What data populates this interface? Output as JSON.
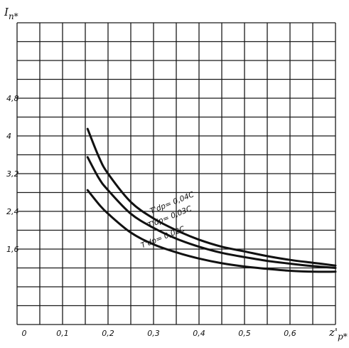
{
  "chart_data": {
    "type": "line",
    "title": "",
    "ylabel": "I_п*",
    "xlabel": "z'_р*",
    "xlim": [
      0,
      0.7
    ],
    "ylim": [
      0,
      6.4
    ],
    "grid": true,
    "x_ticks": [
      "0",
      "0,1",
      "0,2",
      "0,3",
      "0,4",
      "0,5",
      "0,6"
    ],
    "y_ticks": [
      {
        "value": 1.6,
        "label": "1,6"
      },
      {
        "value": 2.4,
        "label": "2,4"
      },
      {
        "value": 3.2,
        "label": "3,2"
      },
      {
        "value": 4.0,
        "label": "4"
      },
      {
        "value": 4.8,
        "label": "4,8"
      }
    ],
    "series": [
      {
        "name": "T'dр=0,04с",
        "label": "T'dр= 0,04С",
        "x": [
          0.155,
          0.18,
          0.2,
          0.25,
          0.3,
          0.35,
          0.4,
          0.45,
          0.5,
          0.55,
          0.6,
          0.65,
          0.7
        ],
        "y": [
          4.15,
          3.55,
          3.2,
          2.6,
          2.25,
          2.0,
          1.8,
          1.65,
          1.55,
          1.45,
          1.37,
          1.31,
          1.25
        ]
      },
      {
        "name": "T'dр=0,03с",
        "label": "T'dр= 0,03С",
        "x": [
          0.155,
          0.18,
          0.2,
          0.25,
          0.3,
          0.35,
          0.4,
          0.45,
          0.5,
          0.55,
          0.6,
          0.65,
          0.7
        ],
        "y": [
          3.55,
          3.1,
          2.85,
          2.35,
          2.05,
          1.82,
          1.65,
          1.52,
          1.43,
          1.35,
          1.29,
          1.24,
          1.2
        ]
      },
      {
        "name": "T'dр=0,02с",
        "label": "T'dр= 0,02С",
        "x": [
          0.155,
          0.18,
          0.2,
          0.25,
          0.3,
          0.35,
          0.4,
          0.45,
          0.5,
          0.55,
          0.6,
          0.65,
          0.7
        ],
        "y": [
          2.85,
          2.55,
          2.35,
          1.95,
          1.7,
          1.53,
          1.4,
          1.3,
          1.23,
          1.18,
          1.14,
          1.12,
          1.12
        ]
      }
    ]
  }
}
